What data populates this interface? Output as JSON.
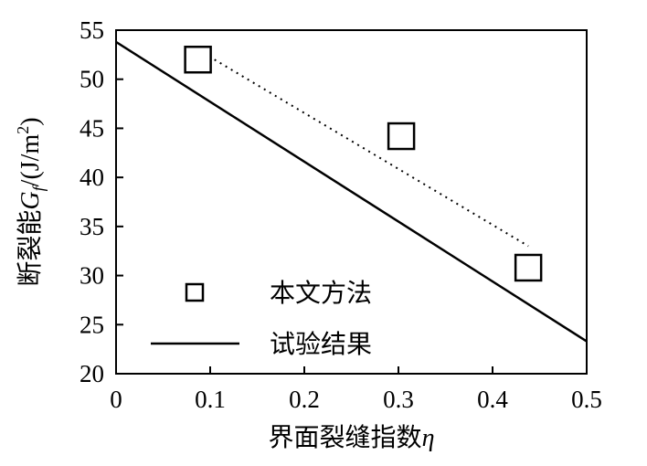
{
  "chart_data": {
    "type": "scatter",
    "xlabel": "界面裂缝指数η",
    "xlabel_parts": {
      "text": "界面裂缝指数",
      "symbol": "η"
    },
    "ylabel": "断裂能Gf/(J/m²)",
    "ylabel_parts": {
      "text": "断裂能",
      "symbol": "G",
      "subscript": "f",
      "unit": "/(J/m",
      "unit_power": "2",
      "unit_close": ")"
    },
    "xlim": [
      0,
      0.5
    ],
    "ylim": [
      20,
      55
    ],
    "x_ticks": [
      0,
      0.1,
      0.2,
      0.3,
      0.4,
      0.5
    ],
    "x_tick_labels": [
      "0",
      "0.1",
      "0.2",
      "0.3",
      "0.4",
      "0.5"
    ],
    "y_ticks": [
      20,
      25,
      30,
      35,
      40,
      45,
      50,
      55
    ],
    "y_tick_labels": [
      "20",
      "25",
      "30",
      "35",
      "40",
      "45",
      "50",
      "55"
    ],
    "grid": false,
    "legend_position": "bottom-left",
    "series": [
      {
        "name": "本文方法",
        "kind": "scatter",
        "marker": "hollow-square",
        "x": [
          0.087,
          0.303,
          0.438
        ],
        "y": [
          52.0,
          44.2,
          30.8
        ]
      },
      {
        "name": "试验结果",
        "kind": "line",
        "style": "solid",
        "x": [
          0,
          0.5
        ],
        "y": [
          53.8,
          23.3
        ]
      },
      {
        "kind": "line",
        "style": "dotted",
        "x": [
          0.087,
          0.438
        ],
        "y": [
          53.0,
          33.0
        ]
      }
    ],
    "colors": {
      "line": "#000000",
      "background": "#ffffff"
    }
  }
}
